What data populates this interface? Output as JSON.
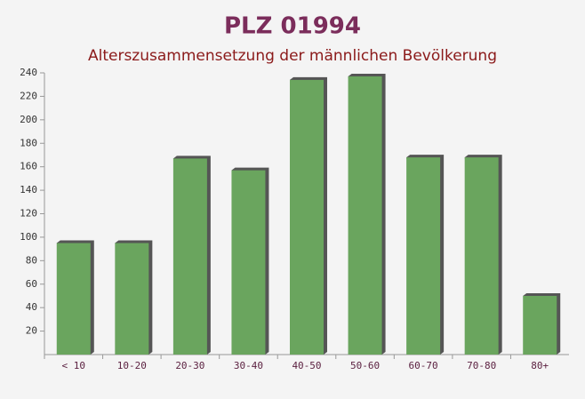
{
  "chart_data": {
    "type": "bar",
    "title": "PLZ 01994",
    "subtitle": "Alterszusammensetzung der männlichen Bevölkerung",
    "categories": [
      "< 10",
      "10-20",
      "20-30",
      "30-40",
      "40-50",
      "50-60",
      "60-70",
      "70-80",
      "80+"
    ],
    "values": [
      95,
      95,
      167,
      157,
      234,
      237,
      168,
      168,
      50
    ],
    "color": "#6aa55e",
    "ylim": [
      0,
      240
    ],
    "yticks": [
      20,
      40,
      60,
      80,
      100,
      120,
      140,
      160,
      180,
      200,
      220,
      240
    ]
  }
}
